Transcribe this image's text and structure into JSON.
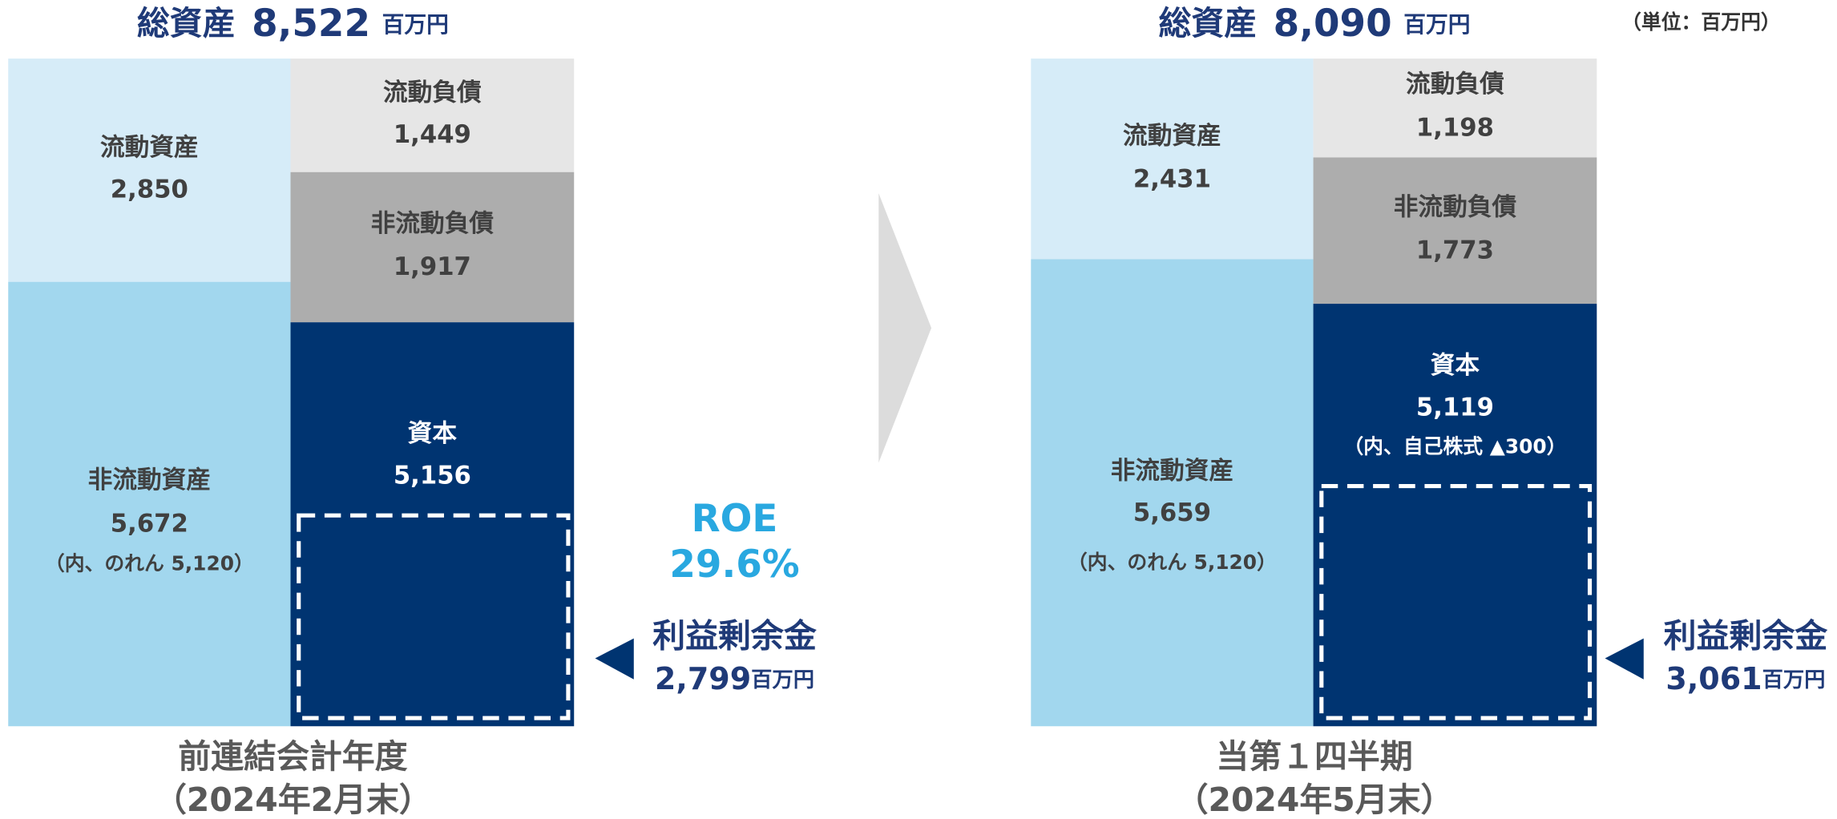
{
  "unit_note": "（単位：百万円）",
  "roe": {
    "label": "ROE",
    "value": "29.6%"
  },
  "panels": [
    {
      "total": {
        "label": "総資産",
        "value": "8,522",
        "unit": "百万円"
      },
      "assets": [
        {
          "name": "流動資産",
          "value": "2,850"
        },
        {
          "name": "非流動資産",
          "value": "5,672",
          "note": "（内、のれん 5,120）"
        }
      ],
      "liabilities": [
        {
          "name": "流動負債",
          "value": "1,449"
        },
        {
          "name": "非流動負債",
          "value": "1,917"
        },
        {
          "name": "資本",
          "value": "5,156"
        }
      ],
      "retained_earnings": {
        "label": "利益剰余金",
        "value": "2,799",
        "unit": "百万円"
      },
      "period": [
        "前連結会計年度",
        "（2024年2月末）"
      ]
    },
    {
      "total": {
        "label": "総資産",
        "value": "8,090",
        "unit": "百万円"
      },
      "assets": [
        {
          "name": "流動資産",
          "value": "2,431"
        },
        {
          "name": "非流動資産",
          "value": "5,659",
          "note": "（内、のれん 5,120）"
        }
      ],
      "liabilities": [
        {
          "name": "流動負債",
          "value": "1,198"
        },
        {
          "name": "非流動負債",
          "value": "1,773"
        },
        {
          "name": "資本",
          "value": "5,119",
          "note": "（内、自己株式 ▲300）"
        }
      ],
      "retained_earnings": {
        "label": "利益剰余金",
        "value": "3,061",
        "unit": "百万円"
      },
      "period": [
        "当第１四半期",
        "（2024年5月末）"
      ]
    }
  ]
}
